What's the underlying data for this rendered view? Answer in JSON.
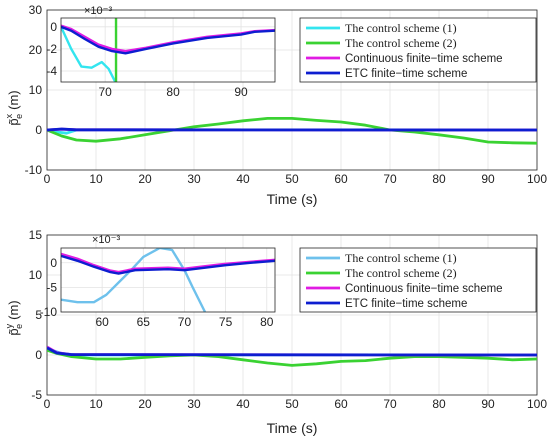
{
  "colors": {
    "cyan": "#33e5ef",
    "green": "#3ad232",
    "magenta": "#e01ce3",
    "blue": "#0d1ed0",
    "lightblue": "#6ec1ec"
  },
  "chart_data": [
    {
      "type": "line",
      "ylabel": "p̃ₑˣ (m)",
      "ylabel_base": "p̃",
      "ylabel_sub": "e",
      "ylabel_sup": "x",
      "ylabel_unit": "(m)",
      "xlabel": "Time (s)",
      "xlim": [
        0,
        100
      ],
      "ylim": [
        -10,
        30
      ],
      "xticks": [
        "0",
        "10",
        "20",
        "30",
        "40",
        "50",
        "60",
        "70",
        "80",
        "90",
        "100"
      ],
      "yticks": [
        "-10",
        "0",
        "10",
        "20",
        "30"
      ],
      "grid": true,
      "legend": {
        "placement": "top-right",
        "entries": [
          {
            "label": "The control scheme (1)",
            "color": "cyan",
            "serif": true
          },
          {
            "label": "The control scheme (2)",
            "color": "green",
            "serif": true
          },
          {
            "label": "Continuous finite−time scheme",
            "color": "magenta",
            "serif": false
          },
          {
            "label": "ETC finite−time scheme",
            "color": "blue",
            "serif": false
          }
        ]
      },
      "series": [
        {
          "name": "The control scheme (1)",
          "color": "cyan",
          "x": [
            0,
            2,
            4,
            5,
            6,
            8,
            10,
            100
          ],
          "y": [
            0,
            -0.5,
            -0.8,
            -0.4,
            0,
            0,
            0,
            0
          ]
        },
        {
          "name": "The control scheme (2)",
          "color": "green",
          "x": [
            0,
            3,
            6,
            10,
            15,
            20,
            25,
            30,
            35,
            40,
            45,
            50,
            55,
            60,
            65,
            70,
            75,
            80,
            85,
            90,
            95,
            100
          ],
          "y": [
            0,
            -1.5,
            -2.5,
            -2.8,
            -2.2,
            -1.2,
            -0.2,
            0.8,
            1.5,
            2.3,
            2.9,
            2.9,
            2.4,
            2.0,
            1.2,
            0,
            -0.5,
            -1.2,
            -2.0,
            -3.0,
            -3.2,
            -3.3
          ]
        },
        {
          "name": "Continuous finite−time scheme",
          "color": "magenta",
          "x": [
            0,
            3,
            6,
            100
          ],
          "y": [
            0,
            0.2,
            0.05,
            0
          ]
        },
        {
          "name": "ETC finite−time scheme",
          "color": "blue",
          "x": [
            0,
            3,
            6,
            100
          ],
          "y": [
            0,
            0.25,
            0.05,
            0
          ]
        }
      ],
      "inset": {
        "exponent": "×10⁻³",
        "xlim": [
          63.5,
          95
        ],
        "ylim": [
          -5,
          0.8
        ],
        "xticks": [
          "70",
          "80",
          "90"
        ],
        "yticks": [
          "0",
          "-2",
          "-4"
        ],
        "series": [
          {
            "color": "cyan",
            "x": [
              63.5,
              65,
              66.5,
              68,
              69.5,
              70.5,
              71.5
            ],
            "y": [
              0,
              -2,
              -3.6,
              -3.7,
              -3.2,
              -3.8,
              -5
            ]
          },
          {
            "color": "green",
            "vertical_x": 71.6
          },
          {
            "color": "magenta",
            "x": [
              63.5,
              65,
              67,
              69,
              71,
              73,
              76,
              80,
              85,
              90,
              92,
              95
            ],
            "y": [
              0.1,
              -0.2,
              -0.9,
              -1.6,
              -2.0,
              -2.2,
              -1.9,
              -1.4,
              -0.9,
              -0.6,
              -0.4,
              -0.3
            ]
          },
          {
            "color": "blue",
            "x": [
              63.5,
              65,
              67,
              69,
              71,
              73,
              76,
              80,
              85,
              90,
              92,
              95
            ],
            "y": [
              0,
              -0.35,
              -1.1,
              -1.8,
              -2.2,
              -2.4,
              -2.0,
              -1.5,
              -1.0,
              -0.7,
              -0.45,
              -0.35
            ]
          }
        ]
      }
    },
    {
      "type": "line",
      "ylabel": "p̃ₑʸ (m)",
      "ylabel_base": "p̃",
      "ylabel_sub": "e",
      "ylabel_sup": "y",
      "ylabel_unit": "(m)",
      "xlabel": "Time (s)",
      "xlim": [
        0,
        100
      ],
      "ylim": [
        -5,
        15
      ],
      "xticks": [
        "0",
        "10",
        "20",
        "30",
        "40",
        "50",
        "60",
        "70",
        "80",
        "90",
        "100"
      ],
      "yticks": [
        "-5",
        "0",
        "5",
        "10",
        "15"
      ],
      "grid": true,
      "legend": {
        "placement": "top-right",
        "entries": [
          {
            "label": "The control scheme (1)",
            "color": "lightblue",
            "serif": true
          },
          {
            "label": "The control scheme (2)",
            "color": "green",
            "serif": true
          },
          {
            "label": "Continuous finite−time scheme",
            "color": "magenta",
            "serif": false
          },
          {
            "label": "ETC finite−time scheme",
            "color": "blue",
            "serif": false
          }
        ]
      },
      "series": [
        {
          "name": "The control scheme (1)",
          "color": "cyan",
          "x": [
            0,
            1,
            3,
            6,
            100
          ],
          "y": [
            1.0,
            0.6,
            0.2,
            0,
            0
          ]
        },
        {
          "name": "The control scheme (2)",
          "color": "green",
          "x": [
            0,
            2,
            5,
            10,
            15,
            20,
            25,
            30,
            35,
            40,
            45,
            50,
            55,
            60,
            65,
            70,
            75,
            80,
            85,
            90,
            95,
            100
          ],
          "y": [
            0.6,
            0.2,
            -0.2,
            -0.5,
            -0.5,
            -0.3,
            -0.1,
            0,
            -0.2,
            -0.6,
            -1.0,
            -1.3,
            -1.1,
            -0.8,
            -0.7,
            -0.4,
            -0.2,
            -0.2,
            -0.3,
            -0.4,
            -0.6,
            -0.5
          ]
        },
        {
          "name": "Continuous finite−time scheme",
          "color": "magenta",
          "x": [
            0,
            2,
            5,
            100
          ],
          "y": [
            1.0,
            0.3,
            0.05,
            0
          ]
        },
        {
          "name": "ETC finite−time scheme",
          "color": "blue",
          "x": [
            0,
            2,
            5,
            100
          ],
          "y": [
            0.9,
            0.25,
            0.05,
            0
          ]
        }
      ],
      "inset": {
        "exponent": "×10⁻³",
        "xlim": [
          55,
          81
        ],
        "ylim": [
          -10,
          3
        ],
        "xticks": [
          "60",
          "65",
          "70",
          "75",
          "80"
        ],
        "yticks": [
          "0",
          "-5",
          "-10"
        ],
        "series": [
          {
            "color": "lightblue",
            "x": [
              55,
              57,
              59,
              60.5,
              62,
              63.5,
              65,
              67,
              68.5,
              70,
              71,
              72.5
            ],
            "y": [
              -7.5,
              -8,
              -8,
              -6.5,
              -4,
              -1.5,
              1.2,
              3,
              2.6,
              -1.5,
              -5,
              -10
            ]
          },
          {
            "color": "magenta",
            "x": [
              55,
              57,
              59,
              61,
              62,
              64,
              66,
              68,
              70,
              72,
              75,
              78,
              81
            ],
            "y": [
              1.8,
              0.8,
              -0.5,
              -1.6,
              -1.9,
              -1.2,
              -1.1,
              -1.0,
              -1.2,
              -0.8,
              -0.2,
              0.2,
              0.6
            ]
          },
          {
            "color": "blue",
            "x": [
              55,
              57,
              59,
              61,
              62,
              64,
              66,
              68,
              70,
              72,
              75,
              78,
              81
            ],
            "y": [
              1.4,
              0.4,
              -0.8,
              -1.9,
              -2.2,
              -1.5,
              -1.4,
              -1.3,
              -1.5,
              -1.1,
              -0.5,
              0,
              0.4
            ]
          }
        ]
      }
    }
  ]
}
